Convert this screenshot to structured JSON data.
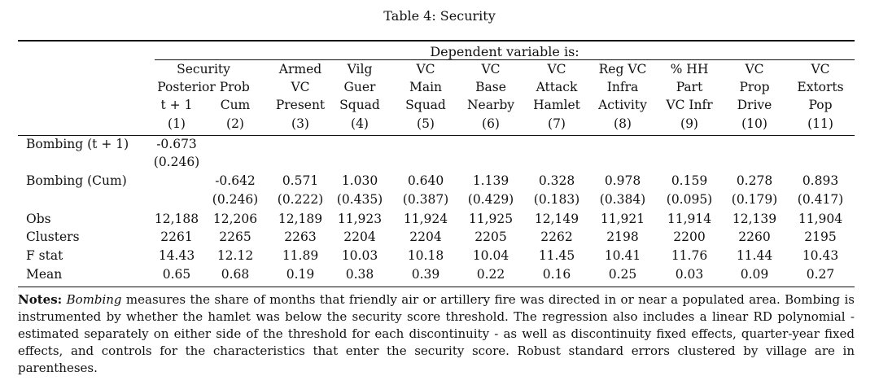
{
  "caption": "Table 4: Security",
  "dependent_variable_header": "Dependent variable is:",
  "group_header": {
    "line1": "Security",
    "line2": "Posterior Prob"
  },
  "columns": [
    {
      "lines": [
        "",
        "",
        "t + 1",
        "(1)"
      ]
    },
    {
      "lines": [
        "",
        "",
        "Cum",
        "(2)"
      ]
    },
    {
      "lines": [
        "Armed",
        "VC",
        "Present",
        "(3)"
      ]
    },
    {
      "lines": [
        "Vilg",
        "Guer",
        "Squad",
        "(4)"
      ]
    },
    {
      "lines": [
        "VC",
        "Main",
        "Squad",
        "(5)"
      ]
    },
    {
      "lines": [
        "VC",
        "Base",
        "Nearby",
        "(6)"
      ]
    },
    {
      "lines": [
        "VC",
        "Attack",
        "Hamlet",
        "(7)"
      ]
    },
    {
      "lines": [
        "Reg VC",
        "Infra",
        "Activity",
        "(8)"
      ]
    },
    {
      "lines": [
        "% HH",
        "Part",
        "VC Infr",
        "(9)"
      ]
    },
    {
      "lines": [
        "VC",
        "Prop",
        "Drive",
        "(10)"
      ]
    },
    {
      "lines": [
        "VC",
        "Extorts",
        "Pop",
        "(11)"
      ]
    }
  ],
  "rows": [
    {
      "label": "Bombing (t + 1)",
      "values": [
        "-0.673",
        "",
        "",
        "",
        "",
        "",
        "",
        "",
        "",
        "",
        ""
      ]
    },
    {
      "label": "",
      "values": [
        "(0.246)",
        "",
        "",
        "",
        "",
        "",
        "",
        "",
        "",
        "",
        ""
      ]
    },
    {
      "label": "Bombing (Cum)",
      "values": [
        "",
        "-0.642",
        "0.571",
        "1.030",
        "0.640",
        "1.139",
        "0.328",
        "0.978",
        "0.159",
        "0.278",
        "0.893"
      ]
    },
    {
      "label": "",
      "values": [
        "",
        "(0.246)",
        "(0.222)",
        "(0.435)",
        "(0.387)",
        "(0.429)",
        "(0.183)",
        "(0.384)",
        "(0.095)",
        "(0.179)",
        "(0.417)"
      ]
    },
    {
      "label": "Obs",
      "values": [
        "12,188",
        "12,206",
        "12,189",
        "11,923",
        "11,924",
        "11,925",
        "12,149",
        "11,921",
        "11,914",
        "12,139",
        "11,904"
      ]
    },
    {
      "label": "Clusters",
      "values": [
        "2261",
        "2265",
        "2263",
        "2204",
        "2204",
        "2205",
        "2262",
        "2198",
        "2200",
        "2260",
        "2195"
      ]
    },
    {
      "label": "F stat",
      "values": [
        "14.43",
        "12.12",
        "11.89",
        "10.03",
        "10.18",
        "10.04",
        "11.45",
        "10.41",
        "11.76",
        "11.44",
        "10.43"
      ]
    },
    {
      "label": "Mean",
      "values": [
        "0.65",
        "0.68",
        "0.19",
        "0.38",
        "0.39",
        "0.22",
        "0.16",
        "0.25",
        "0.03",
        "0.09",
        "0.27"
      ]
    }
  ],
  "notes": {
    "lead": "Notes:",
    "emph": "Bombing",
    "text": " measures the share of months that friendly air or artillery fire was directed in or near a populated area. Bombing is instrumented by whether the hamlet was below the security score threshold. The regression also includes a linear RD polynomial - estimated separately on either side of the threshold for each discontinuity - as well as discontinuity fixed effects, quarter-year fixed effects, and controls for the characteristics that enter the security score. Robust standard errors clustered by village are in parentheses."
  }
}
